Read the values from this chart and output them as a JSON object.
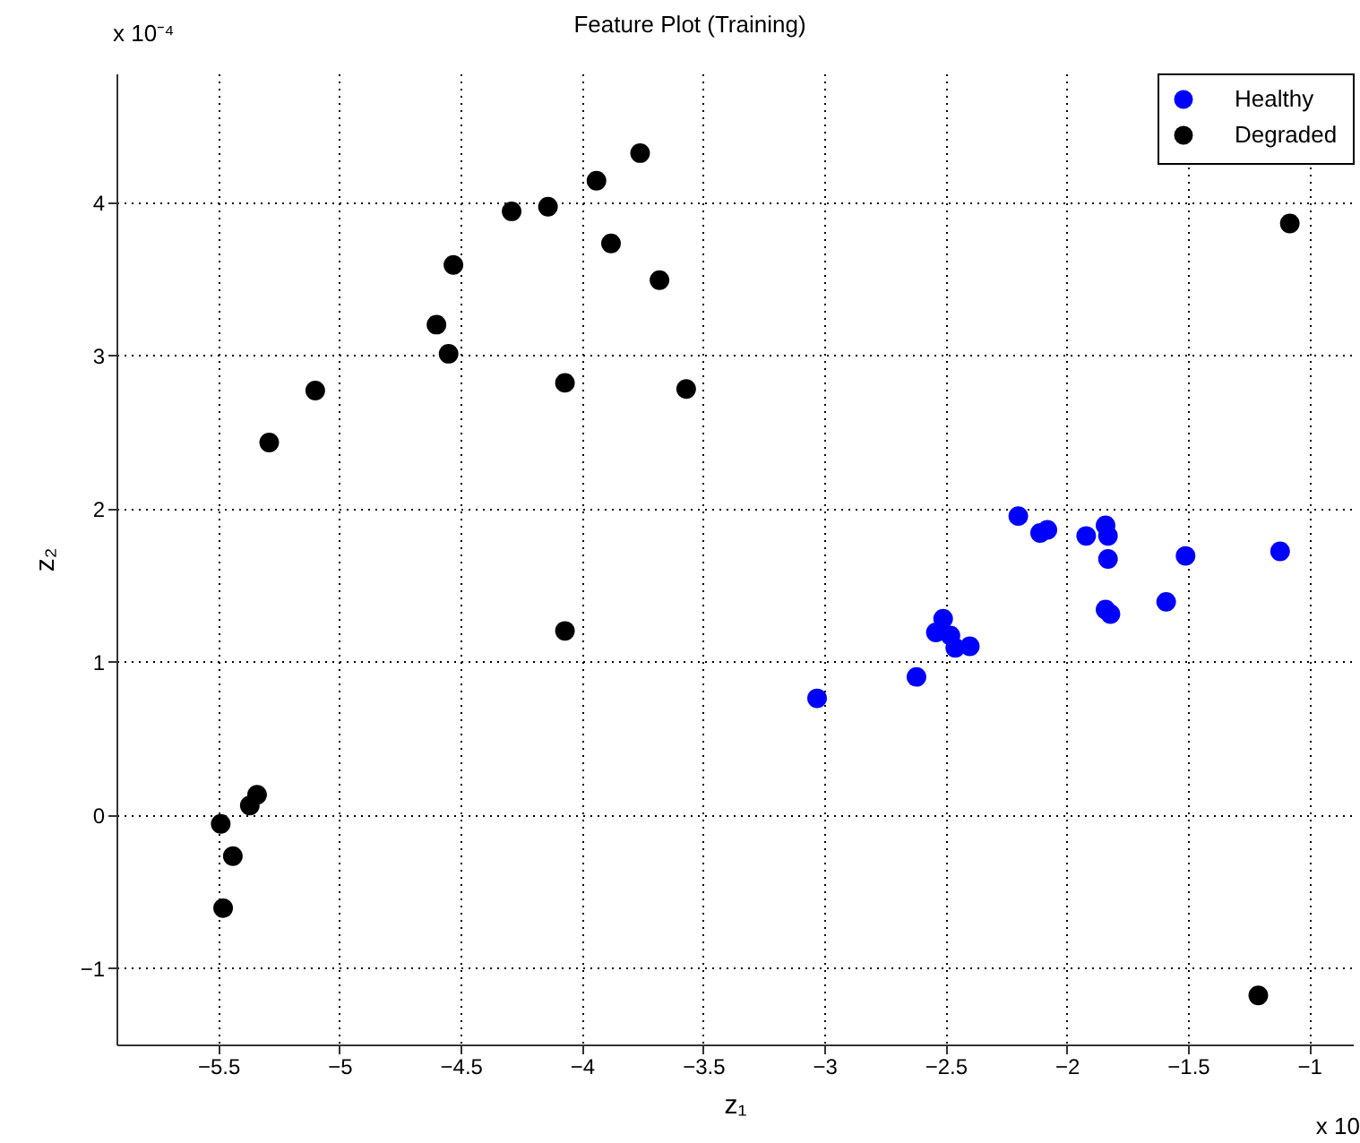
{
  "chart_data": {
    "type": "scatter",
    "title": "Feature Plot (Training)",
    "xlabel": "z₁",
    "ylabel": "z₂",
    "annotations": [
      "x 10⁻⁴",
      "x 10"
    ],
    "xlim": [
      -5.92,
      -0.82
    ],
    "xticks": [
      -5.5,
      -5,
      -4.5,
      -4,
      -3.5,
      -3,
      -2.5,
      -2,
      -1.5,
      -1
    ],
    "ylim": [
      -1.5,
      4.84
    ],
    "yticks": [
      -1,
      0,
      1,
      2,
      3,
      4
    ],
    "grid": true,
    "legend": "top right",
    "marker": "circle",
    "series": [
      {
        "name": "Healthy",
        "color": "#0000ff",
        "x": [
          -2.2,
          -2.11,
          -2.08,
          -1.92,
          -1.84,
          -1.83,
          -1.83,
          -1.51,
          -1.12,
          -1.59,
          -1.84,
          -1.82,
          -2.51,
          -2.54,
          -2.48,
          -2.46,
          -2.4,
          -2.62,
          -3.03
        ],
        "values": [
          1.95,
          1.84,
          1.86,
          1.82,
          1.89,
          1.82,
          1.67,
          1.69,
          1.72,
          1.39,
          1.34,
          1.31,
          1.28,
          1.19,
          1.17,
          1.09,
          1.1,
          0.9,
          0.76
        ]
      },
      {
        "name": "Degraded",
        "color": "#000000",
        "x": [
          -3.76,
          -3.94,
          -4.14,
          -4.29,
          -3.88,
          -4.53,
          -3.68,
          -4.6,
          -4.55,
          -4.07,
          -5.1,
          -3.57,
          -5.29,
          -4.07,
          -1.08,
          -5.49,
          -5.44,
          -5.48,
          -5.37,
          -5.34,
          -1.21
        ],
        "values": [
          4.32,
          4.14,
          3.97,
          3.94,
          3.73,
          3.59,
          3.49,
          3.2,
          3.01,
          2.82,
          2.77,
          2.78,
          2.43,
          1.2,
          3.86,
          -0.06,
          -0.27,
          -0.61,
          0.06,
          0.13,
          -1.18
        ]
      }
    ]
  }
}
